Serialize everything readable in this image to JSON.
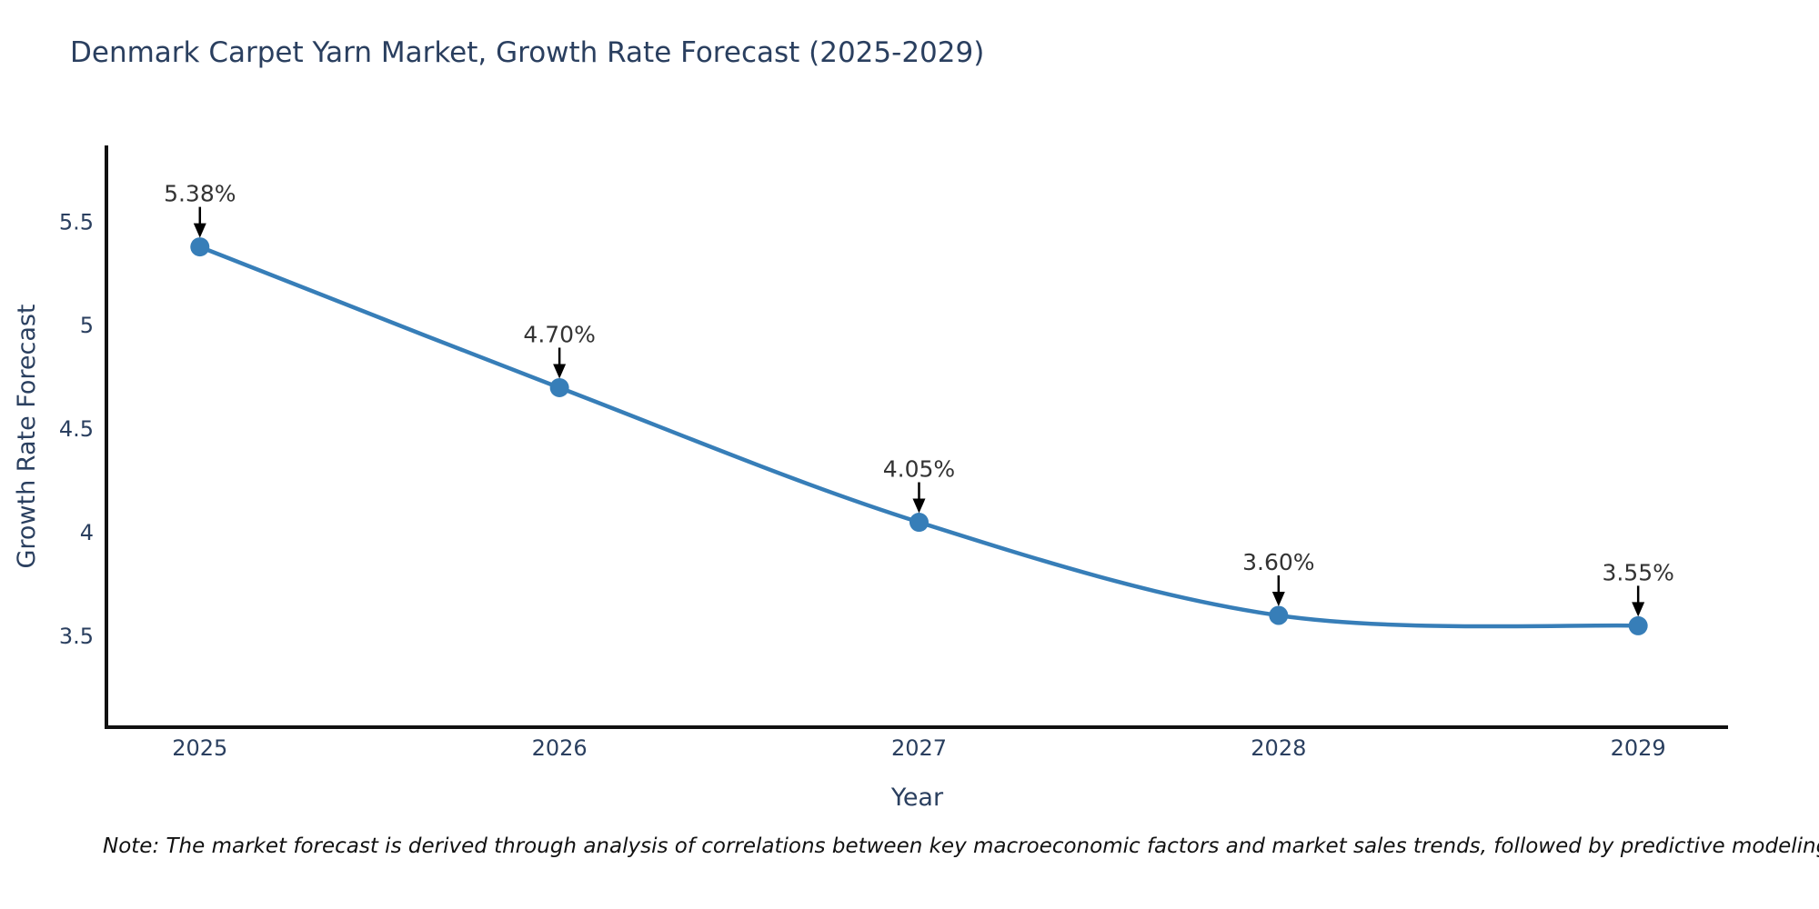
{
  "chart": {
    "title": "Denmark Carpet Yarn Market, Growth Rate Forecast (2025-2029)",
    "note": "Note: The market forecast is derived through analysis of correlations between key macroeconomic factors and market sales trends, followed by predictive modeling to project future sales"
  },
  "chart_data": {
    "type": "line",
    "title": "Denmark Carpet Yarn Market, Growth Rate Forecast (2025-2029)",
    "xlabel": "Year",
    "ylabel": "Growth Rate Forecast",
    "x": [
      2025,
      2026,
      2027,
      2028,
      2029
    ],
    "y": [
      5.38,
      4.7,
      4.05,
      3.6,
      3.55
    ],
    "point_labels": [
      "5.38%",
      "4.70%",
      "4.05%",
      "3.60%",
      "3.55%"
    ],
    "line_shape": "spline",
    "grid": false,
    "legend": false,
    "x_ticks": [
      2025,
      2026,
      2027,
      2028,
      2029
    ],
    "x_tick_labels": [
      "2025",
      "2026",
      "2027",
      "2028",
      "2029"
    ],
    "y_ticks": [
      3.5,
      4,
      4.5,
      5,
      5.5
    ],
    "y_tick_labels": [
      "3.5",
      "4",
      "4.5",
      "5",
      "5.5"
    ],
    "x_range": [
      2024.74,
      2029.25
    ],
    "y_range": [
      3.06,
      5.87
    ],
    "line_color": "#377eb8",
    "marker_color": "#377eb8",
    "axis_color": "#111111",
    "arrow_color": "#000000",
    "text_color": "#2a3f5f",
    "annotation_color": "#333333"
  }
}
